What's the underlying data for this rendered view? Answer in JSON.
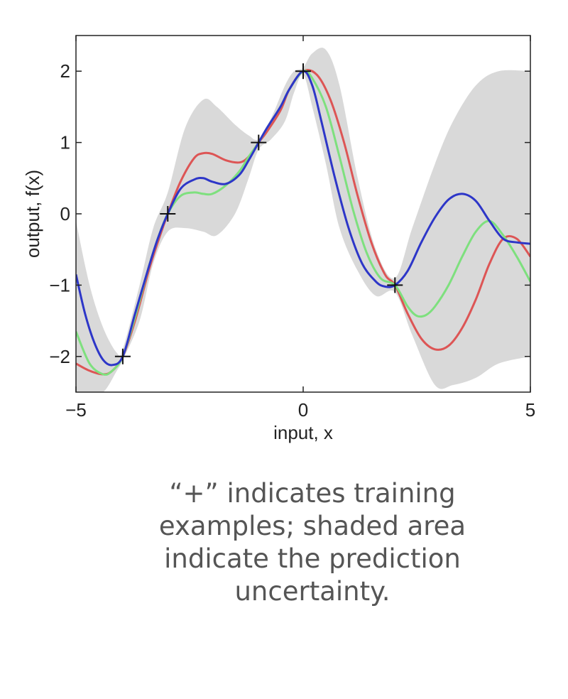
{
  "chart_data": {
    "type": "line",
    "xlabel": "input, x",
    "ylabel": "output, f(x)",
    "xlim": [
      -5,
      5
    ],
    "ylim": [
      -2.5,
      2.5
    ],
    "xticks": [
      -5,
      0,
      5
    ],
    "yticks": [
      -2,
      -1,
      0,
      1,
      2
    ],
    "grid": false,
    "legend": false,
    "training_points": [
      {
        "x": -3.97,
        "y": -2
      },
      {
        "x": -2.98,
        "y": 0
      },
      {
        "x": -0.98,
        "y": 1
      },
      {
        "x": 0.0,
        "y": 2
      },
      {
        "x": 2.02,
        "y": -1
      }
    ],
    "band": {
      "color": "#d9d9d9",
      "x": [
        -5,
        -4.7,
        -4.4,
        -4.1,
        -3.97,
        -3.6,
        -3.3,
        -2.98,
        -2.6,
        -2.2,
        -1.9,
        -1.5,
        -1.2,
        -0.98,
        -0.7,
        -0.4,
        -0.2,
        0.0,
        0.2,
        0.5,
        0.8,
        1.2,
        1.6,
        2.02,
        2.4,
        2.9,
        3.3,
        3.8,
        4.3,
        5
      ],
      "upper": [
        -0.1,
        -1.0,
        -1.6,
        -1.95,
        -1.9,
        -1.0,
        -0.2,
        0.3,
        1.2,
        1.6,
        1.5,
        1.25,
        1.1,
        1.05,
        1.35,
        1.8,
        2.0,
        2.05,
        2.25,
        2.3,
        1.8,
        0.5,
        -0.5,
        -0.9,
        -0.2,
        0.7,
        1.3,
        1.8,
        2.0,
        2.0
      ],
      "lower": [
        -2.5,
        -2.5,
        -2.5,
        -2.2,
        -2.05,
        -1.5,
        -0.7,
        -0.25,
        -0.2,
        -0.25,
        -0.3,
        0.0,
        0.5,
        0.9,
        1.05,
        1.3,
        1.7,
        1.95,
        1.5,
        0.7,
        -0.2,
        -0.8,
        -1.15,
        -1.1,
        -1.7,
        -2.4,
        -2.4,
        -2.3,
        -2.1,
        -2.0
      ]
    },
    "series": [
      {
        "color": "#dd5555",
        "x": [
          -5,
          -4.7,
          -4.4,
          -4.2,
          -3.97,
          -3.7,
          -3.4,
          -3.2,
          -2.98,
          -2.7,
          -2.4,
          -2.2,
          -2.0,
          -1.7,
          -1.4,
          -1.2,
          -0.98,
          -0.8,
          -0.5,
          -0.3,
          0.0,
          0.3,
          0.6,
          0.9,
          1.2,
          1.5,
          1.8,
          2.02,
          2.3,
          2.6,
          2.9,
          3.2,
          3.5,
          3.8,
          4.1,
          4.4,
          4.7,
          5
        ],
        "y": [
          -2.1,
          -2.2,
          -2.25,
          -2.2,
          -2.0,
          -1.5,
          -0.8,
          -0.4,
          0.0,
          0.45,
          0.78,
          0.85,
          0.84,
          0.75,
          0.72,
          0.8,
          1.0,
          1.15,
          1.45,
          1.75,
          2.0,
          1.95,
          1.6,
          1.0,
          0.25,
          -0.4,
          -0.85,
          -1.0,
          -1.4,
          -1.75,
          -1.9,
          -1.85,
          -1.6,
          -1.2,
          -0.7,
          -0.35,
          -0.35,
          -0.6
        ]
      },
      {
        "color": "#7ee07e",
        "x": [
          -5,
          -4.7,
          -4.4,
          -4.2,
          -3.97,
          -3.7,
          -3.4,
          -3.2,
          -2.98,
          -2.7,
          -2.4,
          -2.2,
          -2.0,
          -1.7,
          -1.4,
          -1.2,
          -0.98,
          -0.8,
          -0.5,
          -0.3,
          0.0,
          0.2,
          0.5,
          0.8,
          1.1,
          1.4,
          1.7,
          2.02,
          2.3,
          2.5,
          2.7,
          2.9,
          3.2,
          3.5,
          3.8,
          4.1,
          4.4,
          4.7,
          5
        ],
        "y": [
          -1.65,
          -2.1,
          -2.25,
          -2.2,
          -2.0,
          -1.45,
          -0.75,
          -0.35,
          0.0,
          0.25,
          0.3,
          0.28,
          0.28,
          0.4,
          0.6,
          0.8,
          1.0,
          1.2,
          1.5,
          1.75,
          2.0,
          1.9,
          1.5,
          0.8,
          0.05,
          -0.55,
          -0.9,
          -1.0,
          -1.3,
          -1.43,
          -1.42,
          -1.3,
          -1.0,
          -0.6,
          -0.25,
          -0.1,
          -0.3,
          -0.6,
          -0.95
        ]
      },
      {
        "color": "#2d36c8",
        "x": [
          -5,
          -4.8,
          -4.6,
          -4.4,
          -4.2,
          -3.97,
          -3.7,
          -3.4,
          -3.2,
          -2.98,
          -2.7,
          -2.4,
          -2.2,
          -2.0,
          -1.7,
          -1.4,
          -1.2,
          -0.98,
          -0.8,
          -0.5,
          -0.3,
          0.0,
          0.2,
          0.4,
          0.7,
          1.0,
          1.3,
          1.6,
          1.8,
          2.02,
          2.3,
          2.6,
          2.9,
          3.2,
          3.5,
          3.8,
          4.1,
          4.4,
          4.7,
          5
        ],
        "y": [
          -0.85,
          -1.4,
          -1.8,
          -2.05,
          -2.12,
          -2.0,
          -1.4,
          -0.75,
          -0.35,
          0.0,
          0.35,
          0.48,
          0.5,
          0.45,
          0.42,
          0.55,
          0.75,
          1.0,
          1.2,
          1.5,
          1.75,
          2.0,
          1.8,
          1.3,
          0.5,
          -0.2,
          -0.7,
          -0.95,
          -1.02,
          -1.0,
          -0.8,
          -0.4,
          -0.05,
          0.2,
          0.28,
          0.18,
          -0.1,
          -0.35,
          -0.4,
          -0.42
        ]
      }
    ]
  },
  "caption": "“+” indicates training examples; shaded area indicate the prediction uncertainty."
}
